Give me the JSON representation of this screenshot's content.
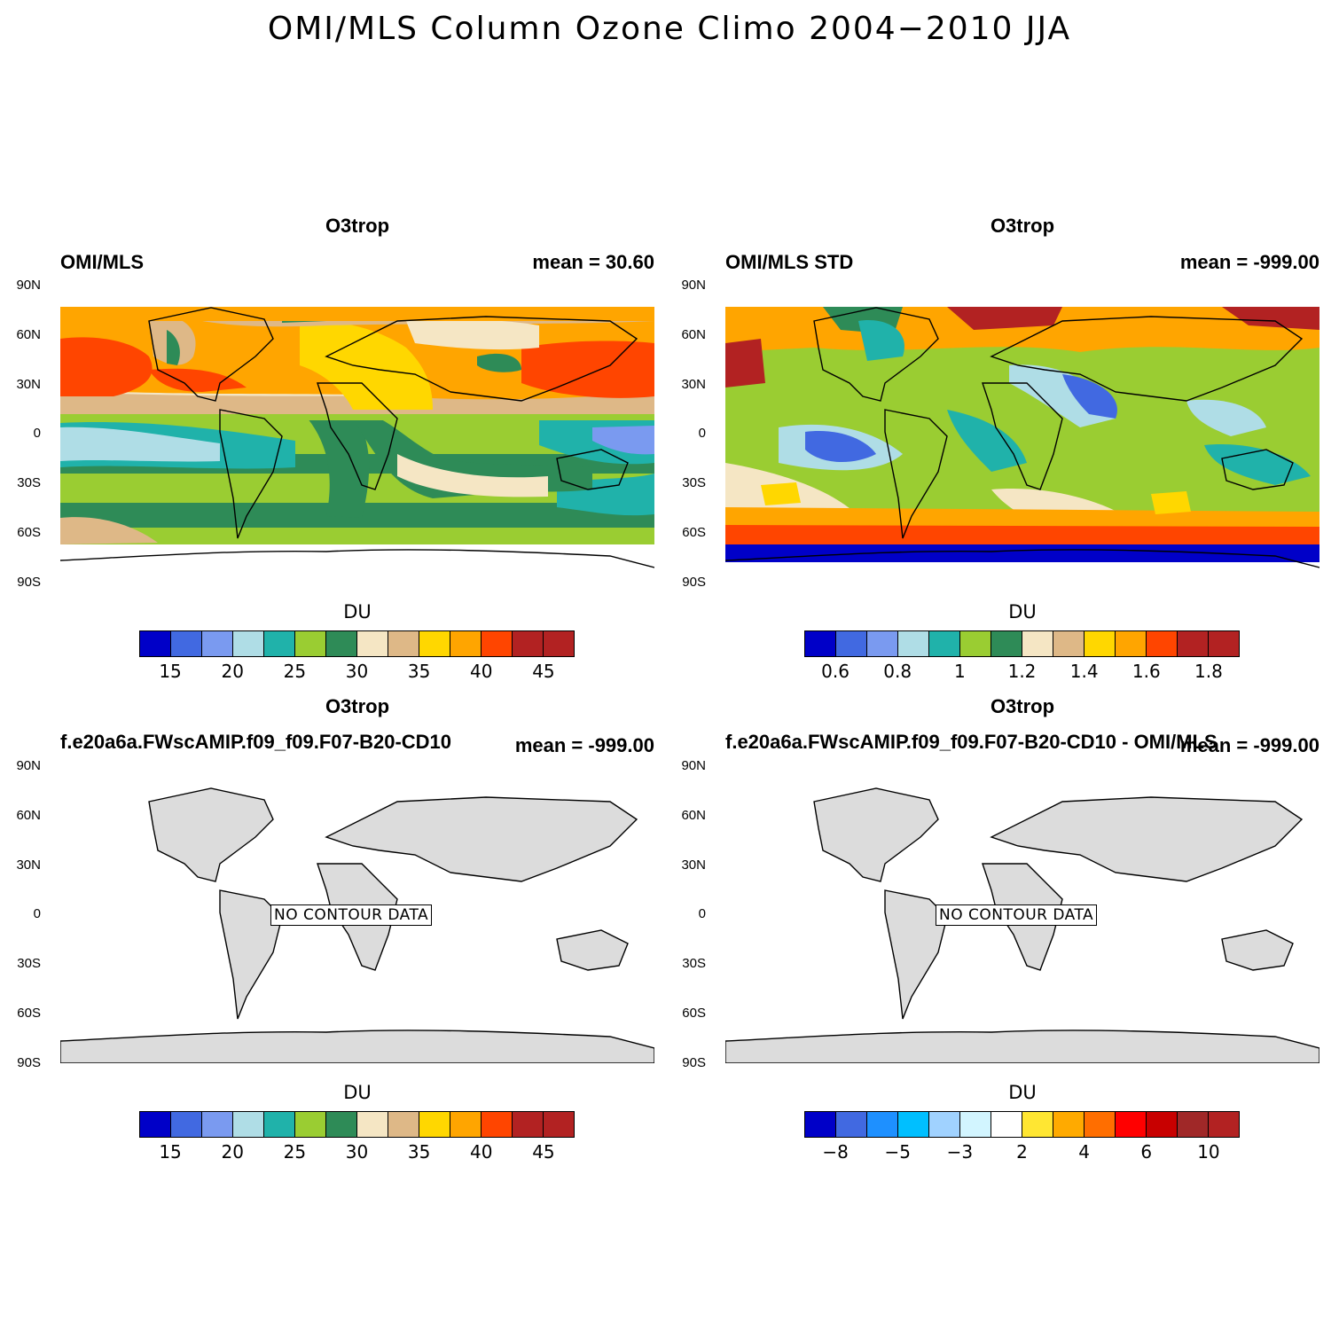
{
  "figure_title": "OMI/MLS Column Ozone Climo 2004−2010 JJA",
  "lat_ticks": [
    "90N",
    "60N",
    "30N",
    "0",
    "30S",
    "60S",
    "90S"
  ],
  "palettes": {
    "seq": [
      "#0000c8",
      "#4169e1",
      "#7a9af0",
      "#afdde6",
      "#20b2aa",
      "#9acd32",
      "#2e8b57",
      "#f5e6c4",
      "#deb887",
      "#ffd700",
      "#ffa500",
      "#ff4500",
      "#b22222",
      "#b22222"
    ],
    "diff": [
      "#0000c8",
      "#4169e1",
      "#1e90ff",
      "#00bfff",
      "#a0d2ff",
      "#d2f5ff",
      "#ffffff",
      "#ffe632",
      "#ffaa00",
      "#ff6e00",
      "#ff0000",
      "#c80000",
      "#a02828",
      "#b22222"
    ]
  },
  "panels": [
    {
      "title": "O3trop",
      "left_label": "OMI/MLS",
      "right_label": "mean =  30.60",
      "units": "DU",
      "colorbar_labels": [
        "15",
        "20",
        "25",
        "30",
        "35",
        "40",
        "45"
      ],
      "no_contour": ""
    },
    {
      "title": "O3trop",
      "left_label": "OMI/MLS STD",
      "right_label": "mean = -999.00",
      "units": "DU",
      "colorbar_labels": [
        "0.6",
        "0.8",
        "1",
        "1.2",
        "1.4",
        "1.6",
        "1.8"
      ],
      "no_contour": ""
    },
    {
      "title": "O3trop",
      "left_label": "f.e20a6a.FWscAMIP.f09_f09.F07-B20-CD10",
      "right_label": "mean = -999.00",
      "units": "DU",
      "colorbar_labels": [
        "15",
        "20",
        "25",
        "30",
        "35",
        "40",
        "45"
      ],
      "no_contour": "NO CONTOUR DATA"
    },
    {
      "title": "O3trop",
      "left_label": "f.e20a6a.FWscAMIP.f09_f09.F07-B20-CD10 - OMI/MLS",
      "right_label": "mean = -999.00",
      "units": "DU",
      "colorbar_labels": [
        "−8",
        "−5",
        "−3",
        "2",
        "4",
        "6",
        "10"
      ],
      "no_contour": "NO CONTOUR DATA"
    }
  ]
}
